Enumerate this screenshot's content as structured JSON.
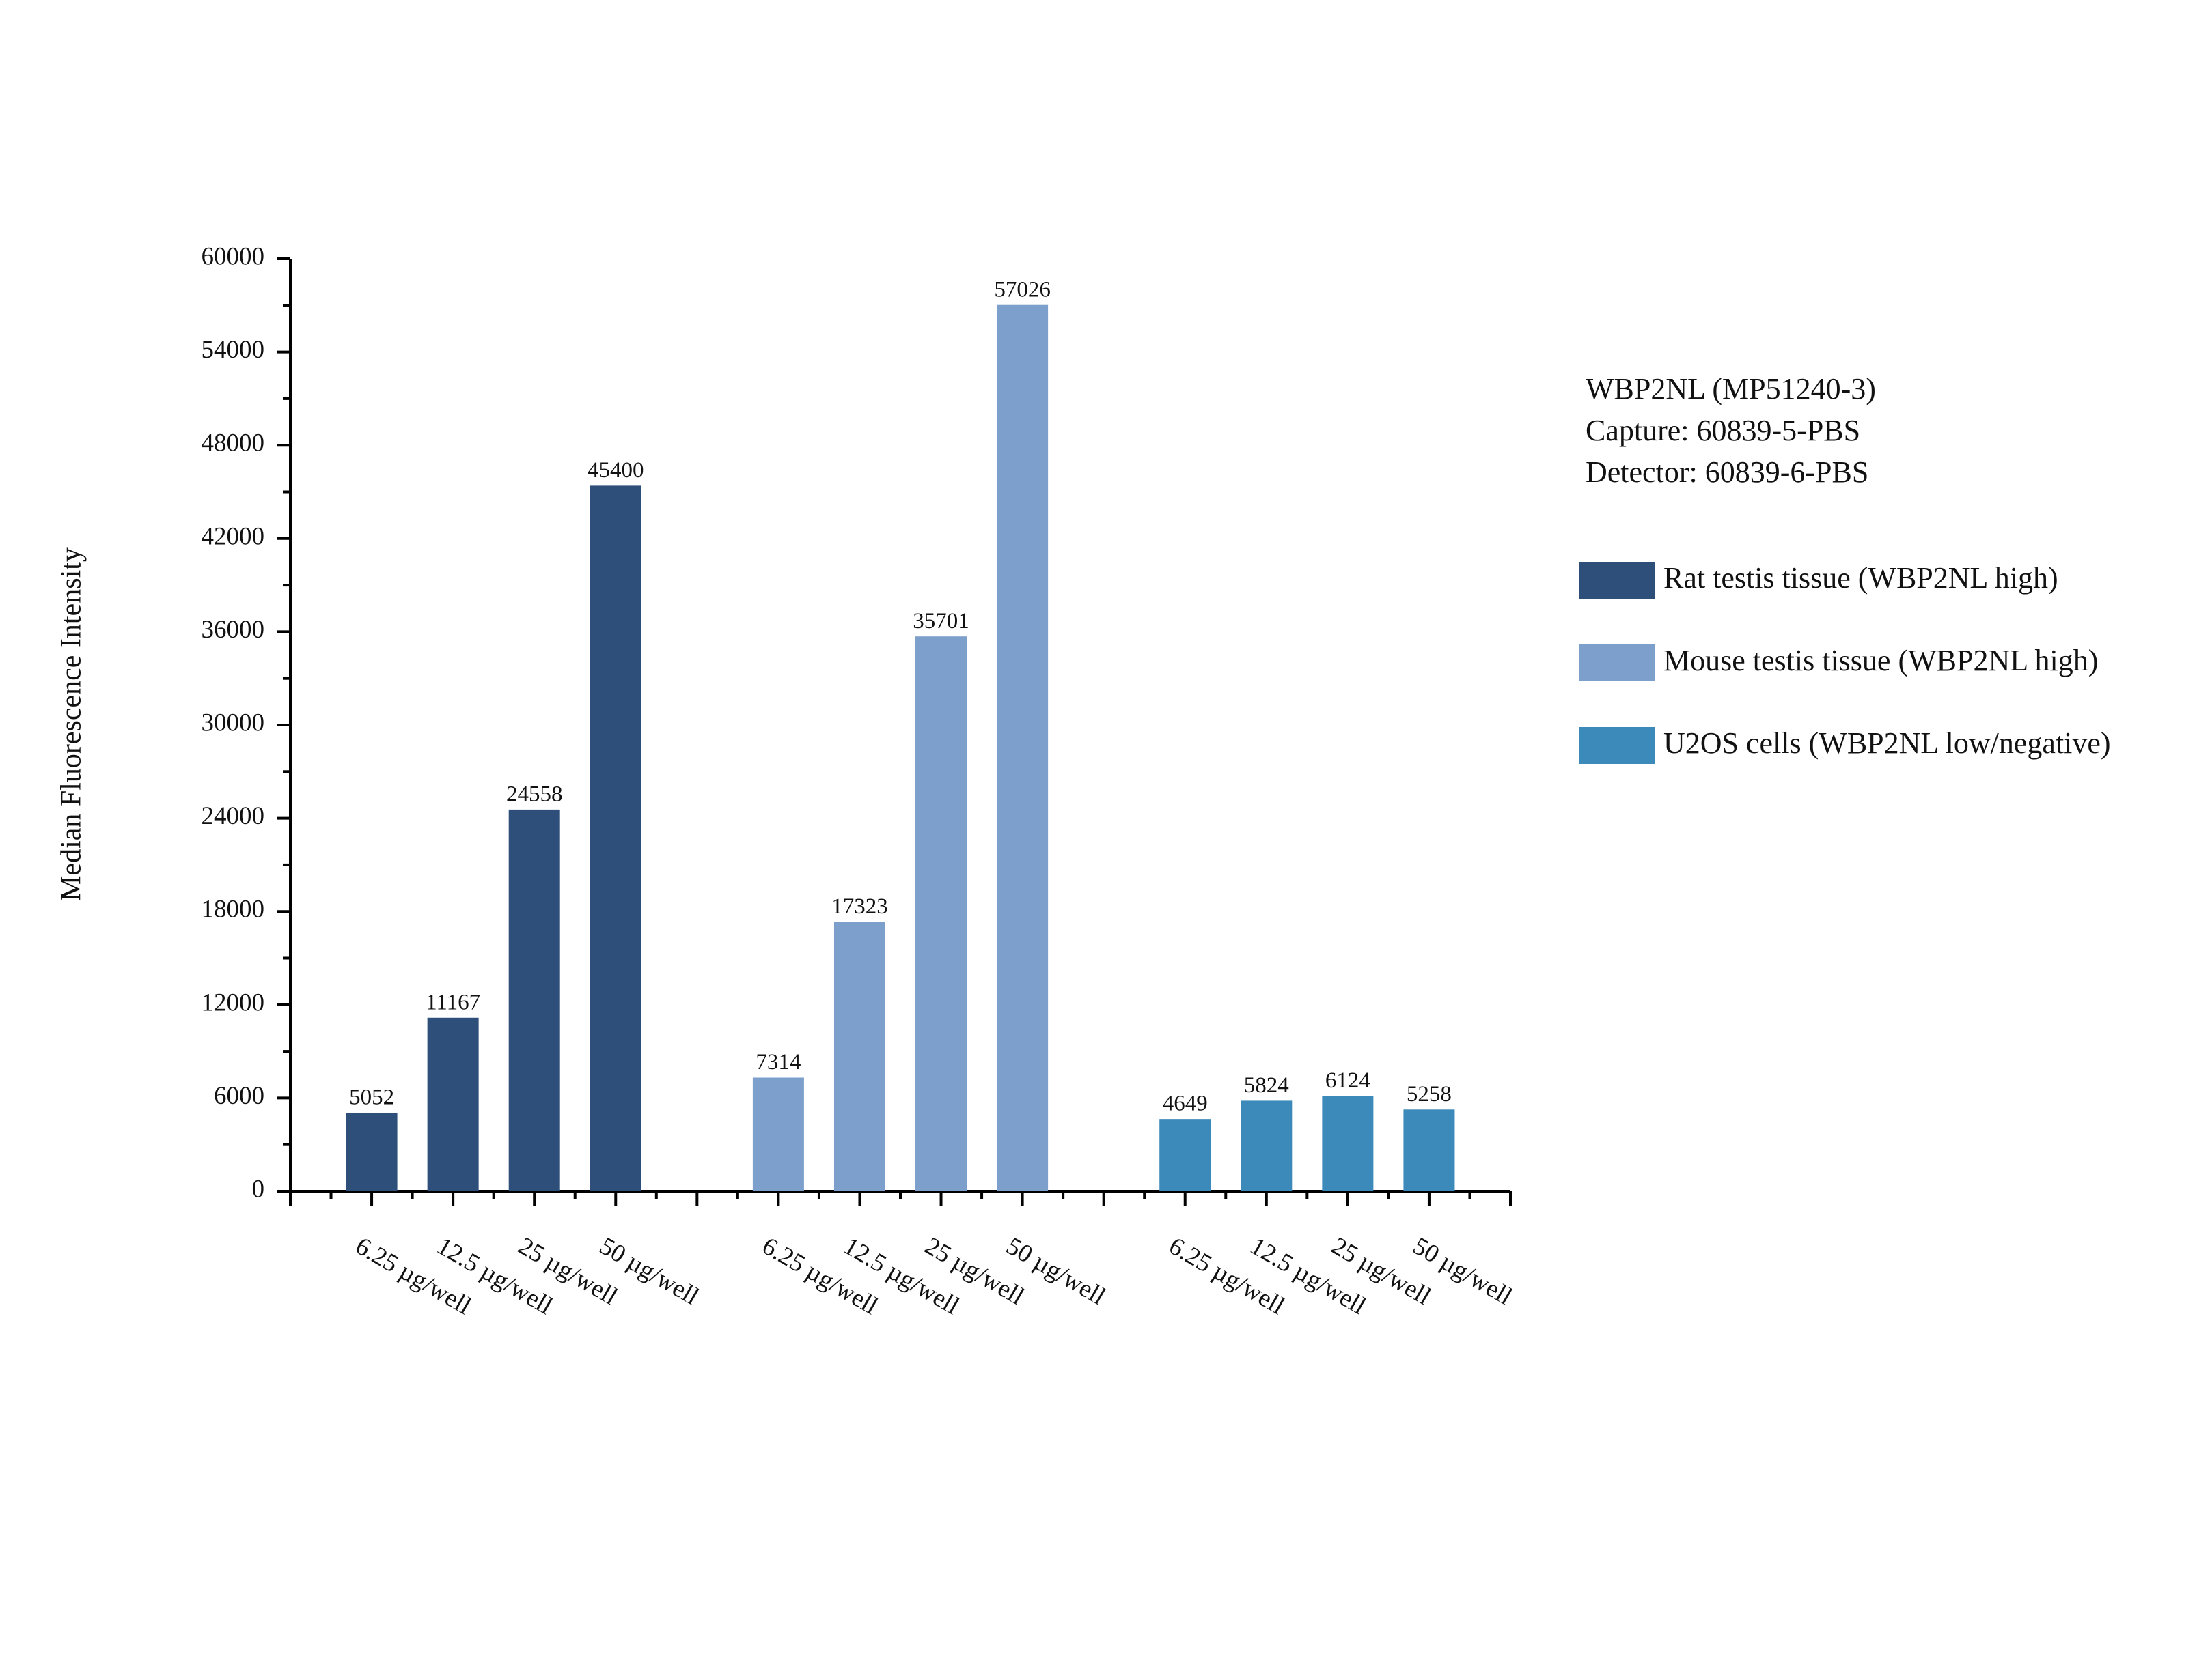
{
  "chart_data": {
    "type": "bar",
    "y_label": "Median Fluorescence Intensity",
    "annotations": [
      "WBP2NL (MP51240-3)",
      "Capture: 60839-5-PBS",
      "Detector: 60839-6-PBS"
    ],
    "categories": [
      "6.25 µg/well",
      "12.5 µg/well",
      "25 µg/well",
      "50 µg/well",
      null,
      "6.25 µg/well",
      "12.5 µg/well",
      "25 µg/well",
      "50 µg/well",
      null,
      "6.25 µg/well",
      "12.5 µg/well",
      "25 µg/well",
      "50 µg/well"
    ],
    "series": [
      {
        "name": "Rat testis tissue (WBP2NL high)",
        "color": "#2e4f7a",
        "values": [
          5052,
          11167,
          24558,
          45400,
          null,
          null,
          null,
          null,
          null,
          null,
          null,
          null,
          null,
          null
        ]
      },
      {
        "name": "Mouse testis tissue (WBP2NL high)",
        "color": "#7d9fcc",
        "values": [
          null,
          null,
          null,
          null,
          null,
          7314,
          17323,
          35701,
          57026,
          null,
          null,
          null,
          null,
          null
        ]
      },
      {
        "name": "U2OS cells (WBP2NL low/negative)",
        "color": "#3c8aba",
        "values": [
          null,
          null,
          null,
          null,
          null,
          null,
          null,
          null,
          null,
          null,
          4649,
          5824,
          6124,
          5258
        ]
      }
    ],
    "ylim": [
      0,
      60000
    ],
    "yticks": [
      0,
      6000,
      12000,
      18000,
      24000,
      30000,
      36000,
      42000,
      48000,
      54000,
      60000
    ],
    "grid": false
  }
}
